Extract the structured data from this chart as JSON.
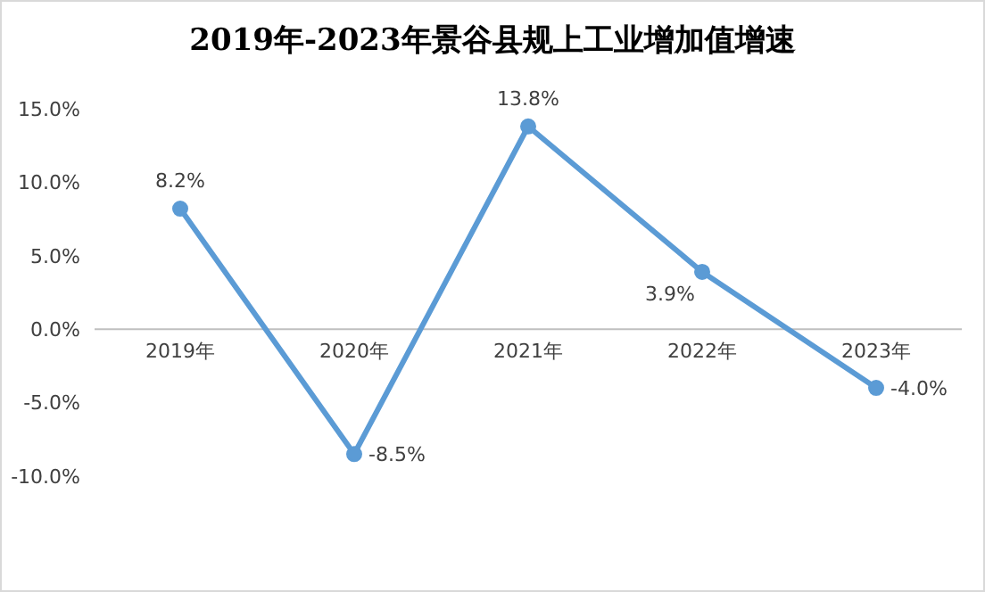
{
  "chart_data": {
    "type": "line",
    "title": "2019年-2023年景谷县规上工业增加值增速",
    "categories": [
      "2019年",
      "2020年",
      "2021年",
      "2022年",
      "2023年"
    ],
    "series": [
      {
        "color": "#5b9bd5",
        "values": [
          8.2,
          -8.5,
          13.8,
          3.9,
          -4.0
        ],
        "value_labels": [
          "8.2%",
          "-8.5%",
          "13.8%",
          "3.9%",
          "-4.0%"
        ]
      }
    ],
    "ylim": [
      -10,
      15
    ],
    "yticks": [
      {
        "value": -10,
        "label": "-10.0%"
      },
      {
        "value": -5,
        "label": "-5.0%"
      },
      {
        "value": 0,
        "label": "0.0%"
      },
      {
        "value": 5,
        "label": "5.0%"
      },
      {
        "value": 10,
        "label": "10.0%"
      },
      {
        "value": 15,
        "label": "15.0%"
      }
    ],
    "grid": false,
    "marker": "circle",
    "line_style": "solid"
  }
}
